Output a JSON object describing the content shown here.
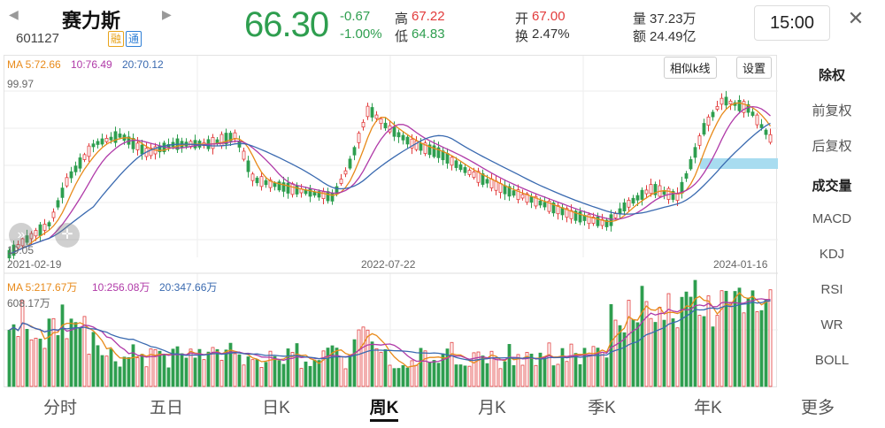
{
  "header": {
    "name": "赛力斯",
    "code": "601127",
    "badges": [
      "融",
      "通"
    ],
    "price": "66.30",
    "change": "-0.67",
    "change_pct": "-1.00%",
    "high_label": "高",
    "high": "67.22",
    "low_label": "低",
    "low": "64.83",
    "open_label": "开",
    "open": "67.00",
    "turnover_label": "换",
    "turnover": "2.47%",
    "volume_label": "量",
    "volume": "37.23万",
    "amount_label": "额",
    "amount": "24.49亿",
    "time": "15:00",
    "close_icon": "✕"
  },
  "price_chart": {
    "ma5_label": "MA 5:72.66",
    "ma10_label": "10:76.49",
    "ma20_label": "20:70.12",
    "top_value": "99.97",
    "bottom_value": "19.05",
    "dates": [
      "2021-02-19",
      "2022-07-22",
      "2024-01-16"
    ],
    "similar_button": "相似k线",
    "settings_button": "设置"
  },
  "volume_chart": {
    "ma5_label": "MA 5:217.67万",
    "ma10_label": "10:256.08万",
    "ma20_label": "20:347.66万",
    "top_value": "608.17万"
  },
  "side_menu": [
    "除权",
    "前复权",
    "后复权",
    "成交量",
    "MACD",
    "KDJ",
    "RSI",
    "WR",
    "BOLL"
  ],
  "tabs": [
    "分时",
    "五日",
    "日K",
    "周K",
    "月K",
    "季K",
    "年K",
    "更多"
  ],
  "colors": {
    "up": "#e23b3b",
    "down": "#2e9e4f",
    "ma5": "#e88a1a",
    "ma10": "#b03aa8",
    "ma20": "#3a6ab0",
    "highlight": "#a8dcf0"
  }
}
